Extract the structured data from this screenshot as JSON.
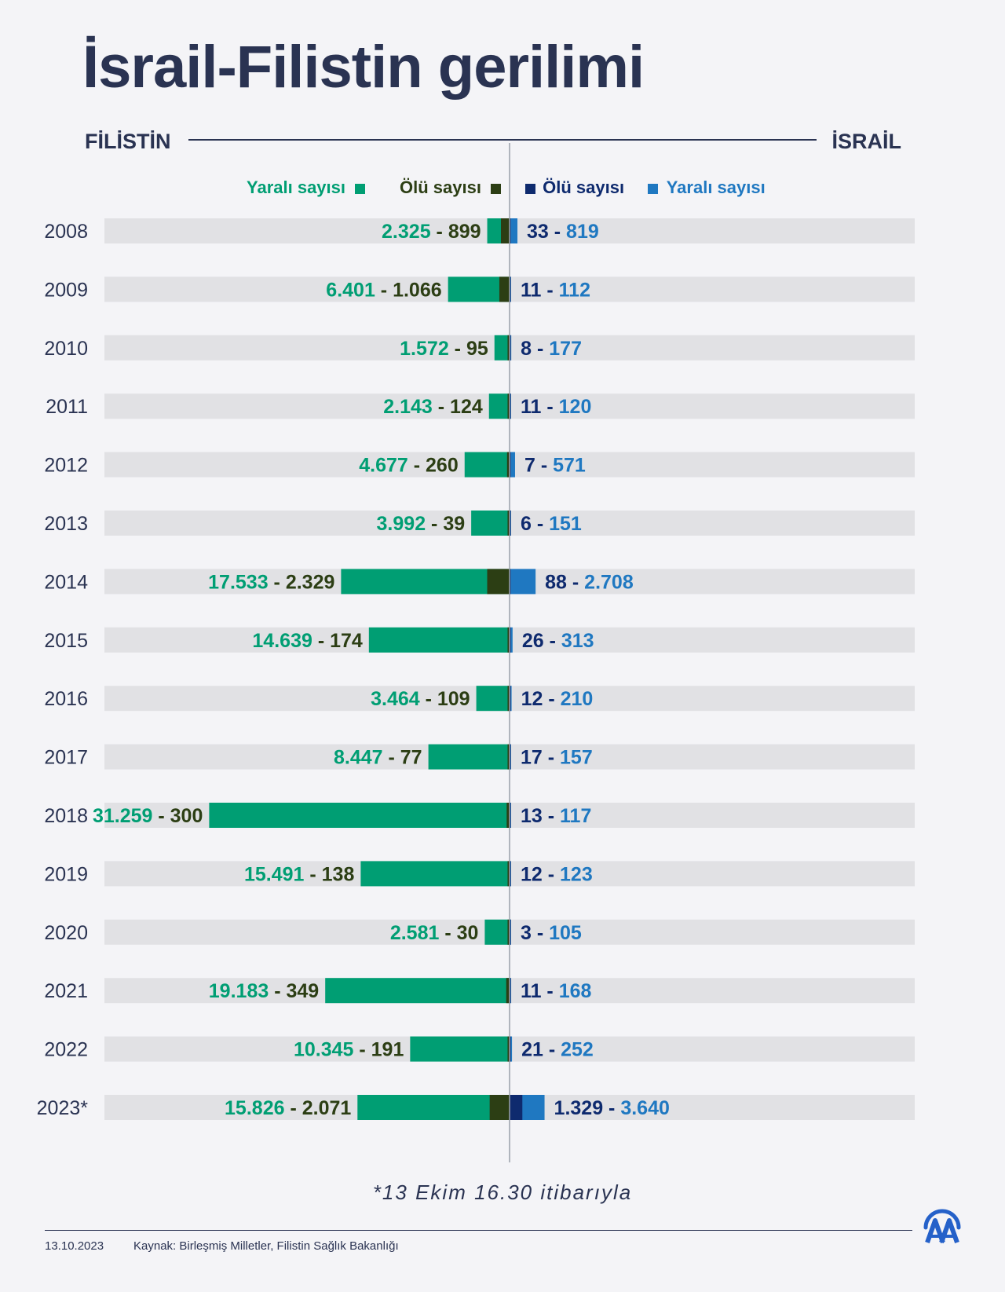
{
  "title": "İsrail-Filistin gerilimi",
  "sides": {
    "left": "FİLİSTİN",
    "right": "İSRAİL"
  },
  "legend": {
    "pal_injured": "Yaralı sayısı",
    "pal_dead": "Ölü sayısı",
    "isr_dead": "Ölü sayısı",
    "isr_injured": "Yaralı sayısı"
  },
  "colors": {
    "pal_injured": "#009e73",
    "pal_dead": "#2c3e14",
    "isr_dead": "#0e2a6e",
    "isr_injured": "#1f78c1",
    "track": "#e1e1e4",
    "title": "#2a3352"
  },
  "chart_data": {
    "type": "bar",
    "orientation": "horizontal-diverging",
    "categories": [
      "2008",
      "2009",
      "2010",
      "2011",
      "2012",
      "2013",
      "2014",
      "2015",
      "2016",
      "2017",
      "2018",
      "2019",
      "2020",
      "2021",
      "2022",
      "2023*"
    ],
    "series": [
      {
        "name": "Filistin Yaralı sayısı",
        "side": "left",
        "labels": [
          "2.325",
          "6.401",
          "1.572",
          "2.143",
          "4.677",
          "3.992",
          "17.533",
          "14.639",
          "3.464",
          "8.447",
          "31.259",
          "15.491",
          "2.581",
          "19.183",
          "10.345",
          "15.826"
        ],
        "values": [
          2325,
          6401,
          1572,
          2143,
          4677,
          3992,
          17533,
          14639,
          3464,
          8447,
          31259,
          15491,
          2581,
          19183,
          10345,
          15826
        ]
      },
      {
        "name": "Filistin Ölü sayısı",
        "side": "left",
        "labels": [
          "899",
          "1.066",
          "95",
          "124",
          "260",
          "39",
          "2.329",
          "174",
          "109",
          "77",
          "300",
          "138",
          "30",
          "349",
          "191",
          "2.071"
        ],
        "values": [
          899,
          1066,
          95,
          124,
          260,
          39,
          2329,
          174,
          109,
          77,
          300,
          138,
          30,
          349,
          191,
          2071
        ]
      },
      {
        "name": "İsrail Ölü sayısı",
        "side": "right",
        "labels": [
          "33",
          "11",
          "8",
          "11",
          "7",
          "6",
          "88",
          "26",
          "12",
          "17",
          "13",
          "12",
          "3",
          "11",
          "21",
          "1.329"
        ],
        "values": [
          33,
          11,
          8,
          11,
          7,
          6,
          88,
          26,
          12,
          17,
          13,
          12,
          3,
          11,
          21,
          1329
        ]
      },
      {
        "name": "İsrail Yaralı sayısı",
        "side": "right",
        "labels": [
          "819",
          "112",
          "177",
          "120",
          "571",
          "151",
          "2.708",
          "313",
          "210",
          "157",
          "117",
          "123",
          "105",
          "168",
          "252",
          "3.640"
        ],
        "values": [
          819,
          112,
          177,
          120,
          571,
          151,
          2708,
          313,
          210,
          157,
          117,
          123,
          105,
          168,
          252,
          3640
        ]
      }
    ]
  },
  "footnote": "*13 Ekim 16.30 itibarıyla",
  "footer": {
    "date": "13.10.2023",
    "source": "Kaynak: Birleşmiş Milletler, Filistin Sağlık Bakanlığı"
  }
}
